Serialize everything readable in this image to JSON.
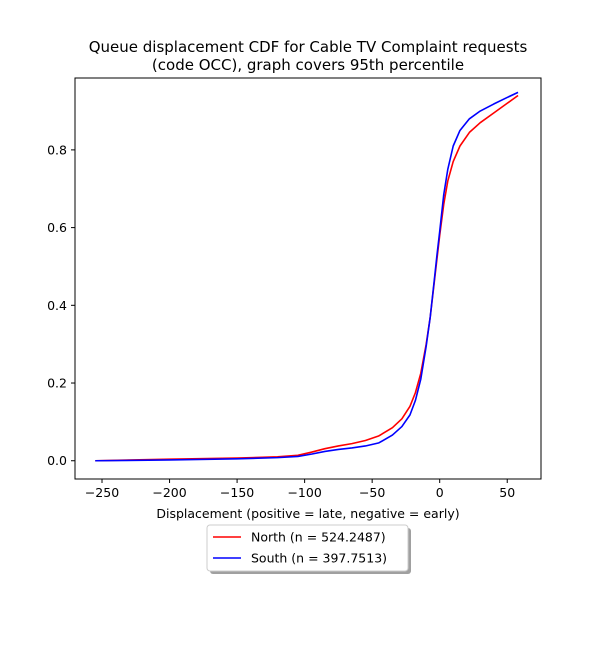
{
  "chart_data": {
    "type": "line",
    "title": "Queue displacement CDF for Cable TV Complaint  requests",
    "subtitle": "(code OCC), graph covers 95th percentile",
    "xlabel": "Displacement (positive = late, negative = early)",
    "ylabel": "",
    "xlim": [
      -270,
      75
    ],
    "ylim": [
      -0.047,
      0.985
    ],
    "xticks": [
      -250,
      -200,
      -150,
      -100,
      -50,
      0,
      50
    ],
    "xtick_labels": [
      "−250",
      "−200",
      "−150",
      "−100",
      "−50",
      "0",
      "50"
    ],
    "yticks": [
      0.0,
      0.2,
      0.4,
      0.6,
      0.8
    ],
    "ytick_labels": [
      "0.0",
      "0.2",
      "0.4",
      "0.6",
      "0.8"
    ],
    "grid": false,
    "legend_placement": "below",
    "series": [
      {
        "name": "North (n = 524.2487)",
        "color": "#ff0000",
        "x": [
          -255,
          -200,
          -150,
          -120,
          -105,
          -95,
          -85,
          -75,
          -65,
          -55,
          -45,
          -35,
          -28,
          -22,
          -18,
          -14,
          -10,
          -7,
          -4,
          -2,
          0,
          3,
          6,
          10,
          15,
          22,
          30,
          40,
          50,
          58
        ],
        "y": [
          0.0,
          0.004,
          0.007,
          0.01,
          0.014,
          0.022,
          0.031,
          0.038,
          0.044,
          0.052,
          0.064,
          0.085,
          0.108,
          0.14,
          0.175,
          0.225,
          0.3,
          0.37,
          0.46,
          0.52,
          0.58,
          0.66,
          0.72,
          0.77,
          0.81,
          0.845,
          0.87,
          0.895,
          0.92,
          0.94
        ]
      },
      {
        "name": "South (n = 397.7513)",
        "color": "#0000ff",
        "x": [
          -255,
          -200,
          -150,
          -120,
          -105,
          -95,
          -85,
          -75,
          -65,
          -55,
          -45,
          -35,
          -28,
          -22,
          -18,
          -14,
          -10,
          -7,
          -4,
          -2,
          0,
          3,
          6,
          10,
          15,
          22,
          30,
          40,
          50,
          58
        ],
        "y": [
          0.0,
          0.002,
          0.005,
          0.008,
          0.011,
          0.017,
          0.024,
          0.029,
          0.033,
          0.038,
          0.046,
          0.066,
          0.088,
          0.118,
          0.155,
          0.21,
          0.295,
          0.37,
          0.465,
          0.53,
          0.59,
          0.685,
          0.75,
          0.81,
          0.85,
          0.88,
          0.9,
          0.918,
          0.935,
          0.948
        ]
      }
    ]
  }
}
